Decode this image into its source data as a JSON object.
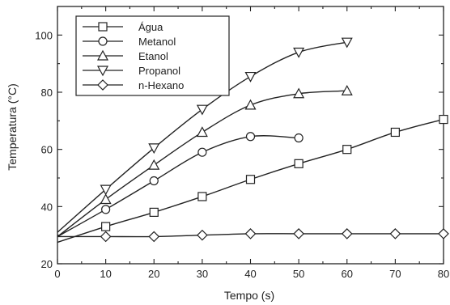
{
  "chart_data": {
    "type": "line",
    "xlabel": "Tempo (s)",
    "ylabel": "Temperatura (°C)",
    "xlim": [
      0,
      80
    ],
    "ylim": [
      20,
      110
    ],
    "x_ticks": [
      0,
      10,
      20,
      30,
      40,
      50,
      60,
      70,
      80
    ],
    "y_ticks": [
      20,
      40,
      60,
      80,
      100
    ],
    "legend_position": "top-left",
    "grid": false,
    "series": [
      {
        "name": "Água",
        "marker": "square",
        "x": [
          0,
          10,
          20,
          30,
          40,
          50,
          60,
          70,
          80
        ],
        "y": [
          27.5,
          33,
          38,
          43.5,
          49.5,
          55,
          60,
          66,
          70.5
        ]
      },
      {
        "name": "Metanol",
        "marker": "circle",
        "x": [
          0,
          10,
          20,
          30,
          40,
          50
        ],
        "y": [
          29.5,
          39,
          49,
          59,
          64.5,
          64
        ]
      },
      {
        "name": "Etanol",
        "marker": "triangle-up",
        "x": [
          0,
          10,
          20,
          30,
          40,
          50,
          60
        ],
        "y": [
          29.5,
          42.5,
          54.5,
          66,
          75.5,
          79.5,
          80.5
        ]
      },
      {
        "name": "Propanol",
        "marker": "triangle-down",
        "x": [
          0,
          10,
          20,
          30,
          40,
          50,
          60
        ],
        "y": [
          31,
          46,
          60.5,
          74,
          85.5,
          94,
          97.5
        ]
      },
      {
        "name": "n-Hexano",
        "marker": "diamond",
        "x": [
          0,
          10,
          20,
          30,
          40,
          50,
          60,
          70,
          80
        ],
        "y": [
          29.5,
          29.5,
          29.5,
          30,
          30.5,
          30.5,
          30.5,
          30.5,
          30.5
        ]
      }
    ]
  }
}
